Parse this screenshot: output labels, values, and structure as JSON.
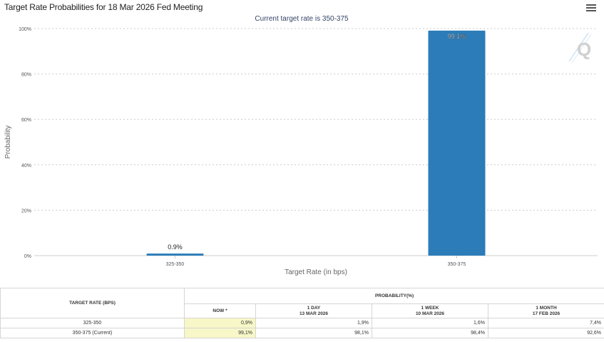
{
  "page_title": "Target Rate Probabilities for 18 Mar 2026 Fed Meeting",
  "menu_icon": "hamburger-menu-icon",
  "logo_icon": "q-logo-icon",
  "chart_data": {
    "type": "bar",
    "title": "Target Rate Probabilities for 18 Mar 2026 Fed Meeting",
    "subtitle": "Current target rate is 350-375",
    "categories": [
      "325-350",
      "350-375"
    ],
    "values": [
      0.9,
      99.1
    ],
    "value_labels": [
      "0.9%",
      "99.1%"
    ],
    "xlabel": "Target Rate (in bps)",
    "ylabel": "Probability",
    "ylim": [
      0,
      100
    ],
    "yticks": [
      0,
      20,
      40,
      60,
      80,
      100
    ],
    "ytick_labels": [
      "0%",
      "20%",
      "40%",
      "60%",
      "80%",
      "100%"
    ],
    "grid": true,
    "bar_color": "#2b7cb8"
  },
  "table": {
    "rate_header": "TARGET RATE (BPS)",
    "prob_header": "PROBABILITY(%)",
    "columns": [
      {
        "label": "NOW *",
        "date": ""
      },
      {
        "label": "1 DAY",
        "date": "13 MAR 2026"
      },
      {
        "label": "1 WEEK",
        "date": "10 MAR 2026"
      },
      {
        "label": "1 MONTH",
        "date": "17 FEB 2026"
      }
    ],
    "rows": [
      {
        "rate": "325-350",
        "values": [
          "0,9%",
          "1,9%",
          "1,6%",
          "7,4%"
        ]
      },
      {
        "rate": "350-375 (Current)",
        "values": [
          "99,1%",
          "98,1%",
          "98,4%",
          "92,6%"
        ]
      }
    ]
  }
}
